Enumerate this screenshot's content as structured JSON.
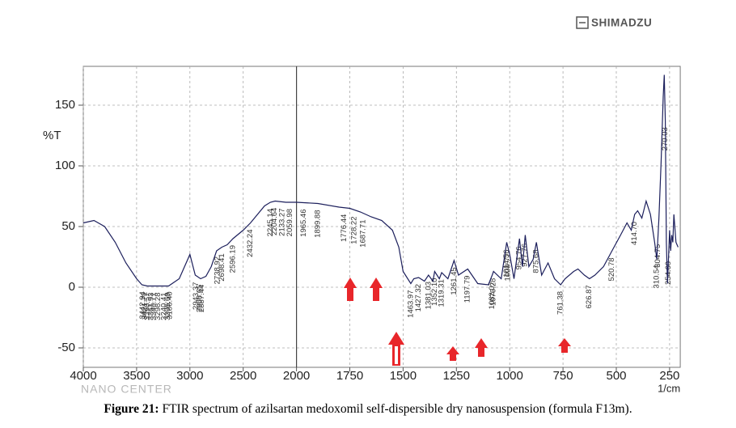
{
  "logo": "SHIMADZU",
  "watermark": "NANO CENTER",
  "figure": {
    "label": "Figure 21:",
    "text": "FTIR spectrum of azilsartan medoxomil self-dispersible dry nanosuspension (formula F13m)."
  },
  "chart_data": {
    "type": "line",
    "ylabel": "%T",
    "xlabel": "1/cm",
    "color": "#1c1f5c",
    "grid": true,
    "xlim": [
      4000,
      200
    ],
    "ylim": [
      -66,
      182
    ],
    "xticks": [
      4000,
      3500,
      3000,
      2500,
      2000,
      1750,
      1500,
      1250,
      1000,
      750,
      500,
      250
    ],
    "yticks": [
      -50,
      0,
      50,
      100,
      150
    ],
    "x": [
      4000,
      3900,
      3800,
      3700,
      3600,
      3500,
      3450,
      3400,
      3300,
      3200,
      3100,
      3000,
      2950,
      2900,
      2850,
      2800,
      2750,
      2700,
      2650,
      2596,
      2500,
      2432,
      2300,
      2245,
      2200,
      2100,
      2000,
      1900,
      1800,
      1750,
      1700,
      1650,
      1600,
      1550,
      1520,
      1500,
      1464,
      1450,
      1427,
      1400,
      1381,
      1360,
      1352,
      1330,
      1319,
      1290,
      1261,
      1240,
      1197,
      1150,
      1100,
      1082,
      1076,
      1040,
      1014,
      1000,
      980,
      954,
      940,
      927,
      910,
      890,
      875,
      850,
      820,
      790,
      761,
      740,
      700,
      680,
      650,
      626,
      600,
      560,
      520,
      480,
      450,
      430,
      414,
      400,
      380,
      360,
      340,
      320,
      310,
      300,
      290,
      280,
      275,
      270,
      265,
      260,
      250,
      245,
      240,
      235,
      230,
      220,
      210
    ],
    "values": [
      53,
      55,
      50,
      37,
      20,
      7,
      2,
      1,
      1,
      1,
      7,
      27,
      10,
      7,
      9,
      17,
      30,
      33,
      35,
      40,
      47,
      53,
      67,
      70,
      71,
      70,
      70,
      69,
      66,
      65,
      62,
      58,
      55,
      47,
      33,
      13,
      3,
      7,
      8,
      5,
      10,
      5,
      13,
      7,
      12,
      7,
      22,
      10,
      15,
      3,
      2,
      10,
      13,
      7,
      37,
      27,
      7,
      40,
      17,
      43,
      17,
      23,
      37,
      10,
      20,
      7,
      2,
      7,
      13,
      15,
      10,
      7,
      10,
      17,
      30,
      43,
      53,
      47,
      60,
      63,
      57,
      71,
      60,
      37,
      23,
      57,
      103,
      157,
      175,
      137,
      37,
      3,
      47,
      30,
      43,
      37,
      60,
      37,
      33
    ],
    "peak_labels": [
      3442.94,
      3421.72,
      3398.57,
      3361.93,
      3340.71,
      3298.28,
      3240.41,
      {
        "value": 3205.69,
        "label": "3205.69"
      },
      {
        "value": 3186.4,
        "label": "3186.40"
      },
      2943.37,
      2908.65,
      2887.44,
      2738.92,
      2698.41,
      2596.19,
      2432.24,
      2245.14,
      2204.64,
      2133.27,
      2059.98,
      1965.46,
      1899.88,
      1776.44,
      1728.22,
      1687.71,
      1463.97,
      1427.32,
      1381.03,
      {
        "value": 1352.1,
        "label": "1352.10"
      },
      1319.31,
      1261.45,
      1197.79,
      1082.07,
      1076.28,
      1014.56,
      1008.77,
      954.76,
      927.76,
      875.68,
      761.38,
      626.87,
      520.78,
      {
        "value": 414.7,
        "label": "414.70"
      },
      310.54,
      304.75,
      270.03,
      {
        "value": 254.6,
        "label": "254.60"
      }
    ]
  }
}
